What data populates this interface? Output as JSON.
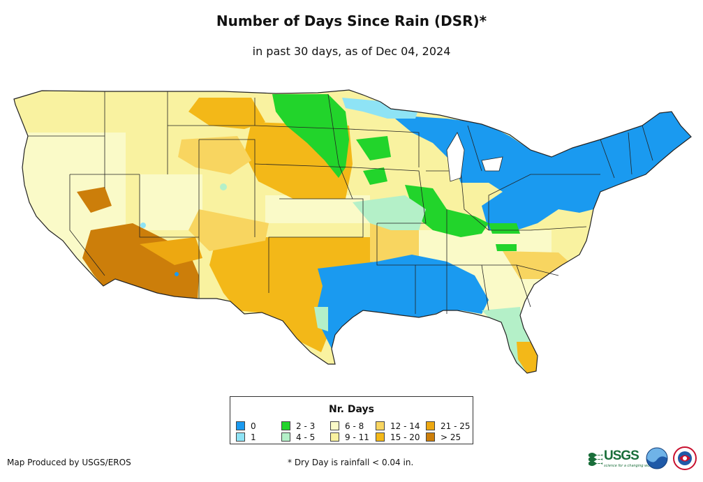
{
  "title": "Number of Days Since Rain (DSR)*",
  "subtitle": "in past 30 days, as of Dec 04, 2024",
  "legend": {
    "title": "Nr. Days",
    "items": [
      {
        "label": "0",
        "color": "#1a9af0"
      },
      {
        "label": "1",
        "color": "#8ee3f5"
      },
      {
        "label": "2 - 3",
        "color": "#22d42b"
      },
      {
        "label": "4 - 5",
        "color": "#b4f0c8"
      },
      {
        "label": "6 - 8",
        "color": "#fafac8"
      },
      {
        "label": "9 - 11",
        "color": "#f9f2a0"
      },
      {
        "label": "12 - 14",
        "color": "#f8d560"
      },
      {
        "label": "15 - 20",
        "color": "#f3b818"
      },
      {
        "label": "21 - 25",
        "color": "#eda811"
      },
      {
        "label": "> 25",
        "color": "#cc7e0a"
      }
    ]
  },
  "footer": {
    "producer": "Map Produced by USGS/EROS",
    "note": "* Dry Day is rainfall < 0.04 in."
  },
  "logos": {
    "usgs": "USGS",
    "usgs_tagline": "science for a changing world",
    "noaa": "noaa-logo",
    "nws": "nws-logo"
  }
}
